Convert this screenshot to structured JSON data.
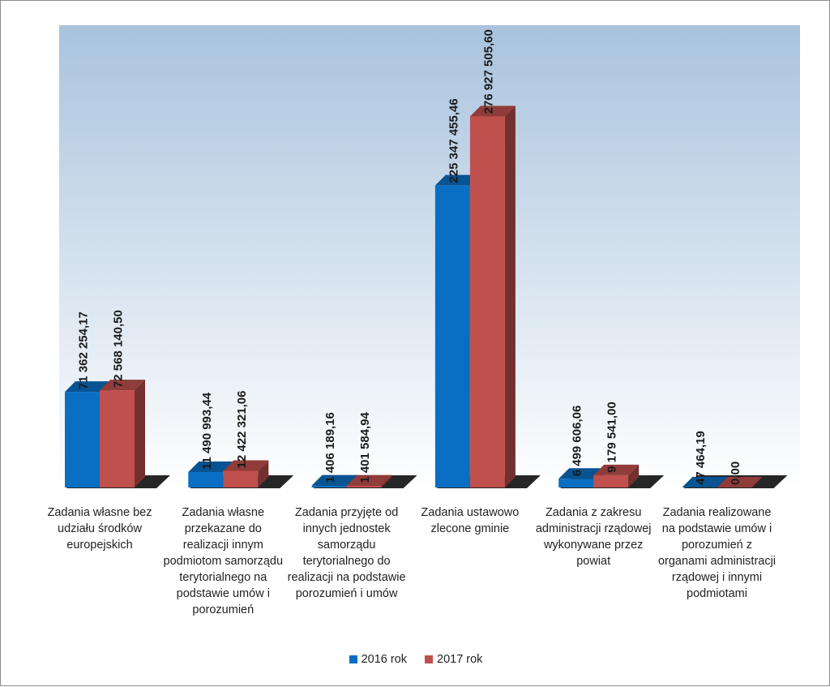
{
  "chart_data": {
    "type": "bar",
    "categories": [
      "Zadania własne bez udziału środków europejskich",
      "Zadania własne przekazane do realizacji innym podmiotom samorządu terytorialnego na podstawie umów i porozumień",
      "Zadania przyjęte od innych jednostek samorządu terytorialnego do realizacji na podstawie porozumień i umów",
      "Zadania ustawowo zlecone gminie",
      "Zadania z zakresu administracji rządowej wykonywane przez powiat",
      "Zadania realizowane na podstawie umów i porozumień z organami administracji rządowej i innymi podmiotami"
    ],
    "series": [
      {
        "name": "2016 rok",
        "color": "#0a6fc2",
        "values": [
          71362254.17,
          11490993.44,
          1406189.16,
          225347455.46,
          6499606.06,
          47464.19
        ],
        "labels": [
          "71 362 254,17",
          "11 490 993,44",
          "1 406 189,16",
          "225 347 455,46",
          "6 499 606,06",
          "47 464,19"
        ]
      },
      {
        "name": "2017 rok",
        "color": "#c0504d",
        "values": [
          72568140.5,
          12422321.06,
          1401584.94,
          276927505.6,
          9179541.0,
          0.0
        ],
        "labels": [
          "72 568 140,50",
          "12 422 321,06",
          "1 401 584,94",
          "276 927 505,60",
          "9 179 541,00",
          "0,00"
        ]
      }
    ],
    "title": "",
    "xlabel": "",
    "ylabel": "",
    "ylim": [
      0,
      345000000
    ],
    "grid": false,
    "legend": "bottom",
    "style": "3d-clustered-column",
    "plot_background": "gradient light-blue to white"
  }
}
